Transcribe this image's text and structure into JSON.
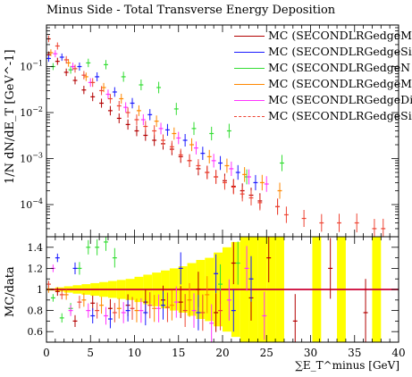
{
  "title": "Minus Side - Total Transverse Energy Deposition",
  "ylabel_top": "1/N dN/dE_T [GeV^-1]",
  "ylabel_bottom": "MC/data",
  "xlabel": "∑E_T^minus [GeV]",
  "colors": {
    "red": "#b30000",
    "blue": "#1a1aff",
    "green": "#33dd33",
    "orange": "#ff8800",
    "magenta": "#ff33ff",
    "salmon": "#ee4433",
    "band": "#ffff00",
    "refline": "#cc0033"
  },
  "legend": [
    {
      "label": "MC (SECONDLRGedgeM",
      "color": "#b30000",
      "style": "solid"
    },
    {
      "label": "MC (SECONDLRGedgeSi",
      "color": "#1a1aff",
      "style": "solid"
    },
    {
      "label": "MC (SECONDLRGedgeN",
      "color": "#33dd33",
      "style": "solid"
    },
    {
      "label": "MC (SECONDLRGedgeM",
      "color": "#ff8800",
      "style": "solid"
    },
    {
      "label": "MC (SECONDLRGedgeDi",
      "color": "#ff33ff",
      "style": "solid"
    },
    {
      "label": "MC (SECONDLRGedgeSi",
      "color": "#ee4433",
      "style": "dashed"
    }
  ],
  "chart_data": {
    "type": "scatter",
    "title": "Minus Side - Total Transverse Energy Deposition",
    "xlabel": "∑E_T^minus [GeV]",
    "ylabel": "1/N dN/dE_T [GeV^-1]",
    "ratio_ylabel": "MC/data",
    "xlim": [
      0,
      40
    ],
    "ylim": [
      2e-05,
      0.8
    ],
    "yscale": "log",
    "ratio_ylim": [
      0.5,
      1.5
    ],
    "x_ticks": [
      0,
      5,
      10,
      15,
      20,
      25,
      30,
      35,
      40
    ],
    "ratio_ticks": [
      0.6,
      0.8,
      1,
      1.2,
      1.4
    ],
    "bin_width": 0.5,
    "series": [
      {
        "name": "MC (SECONDLRGedgeM",
        "color": "#b30000",
        "x": [
          0.25,
          1.25,
          2.25,
          3.25,
          4.25,
          5.25,
          6.25,
          7.25,
          8.25,
          9.25,
          10.25,
          11.25,
          12.25,
          13.25,
          14.25,
          15.25,
          16.25,
          17.25,
          18.25,
          19.25,
          20.25,
          21.25,
          22.25,
          23.25,
          24.25,
          26.25
        ],
        "y": [
          0.18,
          0.13,
          0.075,
          0.05,
          0.031,
          0.022,
          0.016,
          0.011,
          0.0075,
          0.0055,
          0.004,
          0.0032,
          0.0025,
          0.0021,
          0.0016,
          0.0011,
          0.0009,
          0.0006,
          0.0005,
          0.0004,
          0.00033,
          0.00025,
          0.0002,
          0.00016,
          0.00012,
          9e-05
        ]
      },
      {
        "name": "MC (SECONDLRGedgeSi",
        "color": "#1a1aff",
        "x": [
          0.25,
          1.75,
          3.75,
          5.75,
          7.75,
          9.75,
          11.75,
          13.75,
          15.75,
          17.75,
          19.75,
          21.75,
          23.75
        ],
        "y": [
          0.15,
          0.16,
          0.1,
          0.06,
          0.028,
          0.016,
          0.009,
          0.0042,
          0.0025,
          0.0013,
          0.0008,
          0.0005,
          0.0003
        ]
      },
      {
        "name": "MC (SECONDLRGedgeN",
        "color": "#33dd33",
        "x": [
          0.75,
          2.75,
          4.75,
          6.75,
          8.75,
          10.75,
          12.75,
          14.75,
          16.75,
          18.75,
          20.75,
          22.75,
          26.75
        ],
        "y": [
          0.1,
          0.085,
          0.12,
          0.11,
          0.06,
          0.04,
          0.035,
          0.012,
          0.0045,
          0.0035,
          0.004,
          0.0004,
          0.0008
        ]
      },
      {
        "name": "MC (SECONDLRGedgeM",
        "color": "#ff8800",
        "x": [
          0.5,
          2.5,
          4.5,
          6.5,
          8.5,
          10.5,
          12.5,
          14.5,
          16.5,
          18.5,
          20.5,
          22.5,
          24.5,
          26.5
        ],
        "y": [
          0.2,
          0.12,
          0.06,
          0.035,
          0.02,
          0.011,
          0.0065,
          0.0035,
          0.002,
          0.0011,
          0.0007,
          0.00045,
          0.0003,
          0.0002
        ]
      },
      {
        "name": "MC (SECONDLRGedgeDi",
        "color": "#ff33ff",
        "x": [
          1.0,
          3.0,
          5.0,
          7.0,
          9.0,
          11.0,
          13.0,
          15.0,
          17.0,
          19.0,
          21.0,
          23.0,
          25.0
        ],
        "y": [
          0.19,
          0.1,
          0.045,
          0.025,
          0.013,
          0.007,
          0.0045,
          0.0028,
          0.0017,
          0.0009,
          0.0006,
          0.0004,
          0.00028
        ]
      },
      {
        "name": "MC (SECONDLRGedgeSi",
        "color": "#ee4433",
        "x": [
          0.25,
          1.25,
          2.25,
          3.25,
          4.25,
          5.25,
          6.25,
          7.25,
          8.25,
          9.25,
          10.25,
          11.25,
          12.25,
          13.25,
          14.25,
          15.25,
          16.25,
          17.25,
          18.25,
          19.25,
          20.25,
          21.25,
          22.25,
          23.25,
          24.25,
          26.25,
          27.25,
          29.25,
          31.25,
          33.25,
          35.25,
          37.25,
          38.25
        ],
        "y": [
          0.4,
          0.28,
          0.14,
          0.09,
          0.065,
          0.045,
          0.03,
          0.02,
          0.014,
          0.01,
          0.007,
          0.005,
          0.004,
          0.0025,
          0.0018,
          0.0012,
          0.0009,
          0.0007,
          0.0005,
          0.0004,
          0.0003,
          0.00024,
          0.00017,
          0.00014,
          0.00011,
          9e-05,
          6e-05,
          5e-05,
          4e-05,
          4e-05,
          4e-05,
          3e-05,
          3e-05
        ]
      }
    ],
    "ratio_series": [
      {
        "name": "MC (SECONDLRGedgeM",
        "color": "#b30000",
        "x": [
          1.25,
          3.25,
          5.25,
          7.25,
          9.25,
          11.25,
          13.25,
          15.25,
          17.25,
          19.25,
          21.25,
          23.25,
          25.25,
          28.25,
          32.25,
          36.25
        ],
        "y": [
          0.98,
          0.7,
          0.87,
          0.82,
          0.85,
          0.88,
          0.9,
          0.88,
          1.0,
          0.78,
          1.25,
          0.92,
          1.3,
          0.7,
          1.2,
          0.78
        ]
      },
      {
        "name": "MC (SECONDLRGedgeSi",
        "color": "#1a1aff",
        "x": [
          1.25,
          3.25,
          5.25,
          7.25,
          9.25,
          11.25,
          13.25,
          15.25,
          17.25,
          19.25,
          21.25,
          23.25
        ],
        "y": [
          1.3,
          1.2,
          0.75,
          0.72,
          0.8,
          0.78,
          0.85,
          1.2,
          0.78,
          1.15,
          0.8,
          1.1
        ]
      },
      {
        "name": "MC (SECONDLRGedgeN",
        "color": "#33dd33",
        "x": [
          0.75,
          1.75,
          2.75,
          3.75,
          4.75,
          5.75,
          6.75,
          7.75,
          19.75,
          21.75
        ],
        "y": [
          0.92,
          0.73,
          0.82,
          1.2,
          1.4,
          1.4,
          1.45,
          1.3,
          1.05,
          1.25
        ]
      },
      {
        "name": "MC (SECONDLRGedgeM",
        "color": "#ff8800",
        "x": [
          0.25,
          2.25,
          4.25,
          6.25,
          8.25,
          10.25,
          12.25,
          14.25,
          16.25,
          18.25
        ],
        "y": [
          1.0,
          0.95,
          0.9,
          0.85,
          0.82,
          0.8,
          0.82,
          0.85,
          0.9,
          0.95
        ]
      },
      {
        "name": "MC (SECONDLRGedgeDi",
        "color": "#ff33ff",
        "x": [
          0.75,
          2.75,
          4.75,
          6.75,
          8.75,
          10.75,
          12.75,
          14.75,
          16.75,
          18.75,
          20.75,
          22.75,
          24.75
        ],
        "y": [
          1.2,
          0.8,
          0.8,
          0.75,
          0.78,
          0.8,
          0.82,
          0.88,
          0.8,
          0.68,
          0.9,
          1.2,
          0.75
        ]
      },
      {
        "name": "MC (SECONDLRGedgeSi",
        "color": "#ee4433",
        "x": [
          0.25,
          1.75,
          3.75,
          5.75,
          7.75,
          9.75,
          11.75,
          13.75,
          15.75,
          17.75,
          19.75
        ],
        "y": [
          1.05,
          0.95,
          0.88,
          0.8,
          0.78,
          0.82,
          0.85,
          0.83,
          0.8,
          0.78,
          0.8
        ]
      }
    ],
    "uncertainty_band": {
      "x_edges": [
        0,
        1,
        2,
        3,
        4,
        5,
        6,
        7,
        8,
        9,
        10,
        11,
        12,
        13,
        14,
        15,
        16,
        17,
        18,
        19,
        20,
        21,
        22,
        23,
        24,
        25,
        26,
        27
      ],
      "half_width": [
        0.01,
        0.02,
        0.03,
        0.04,
        0.05,
        0.06,
        0.07,
        0.08,
        0.09,
        0.1,
        0.12,
        0.14,
        0.16,
        0.18,
        0.2,
        0.22,
        0.25,
        0.28,
        0.3,
        0.35,
        0.4,
        0.45,
        0.5,
        0.5,
        0.5,
        0.5,
        0.5
      ],
      "extra_bins": [
        [
          30.2,
          31.2
        ],
        [
          33.0,
          34.0
        ],
        [
          37.0,
          38.0
        ]
      ]
    }
  }
}
